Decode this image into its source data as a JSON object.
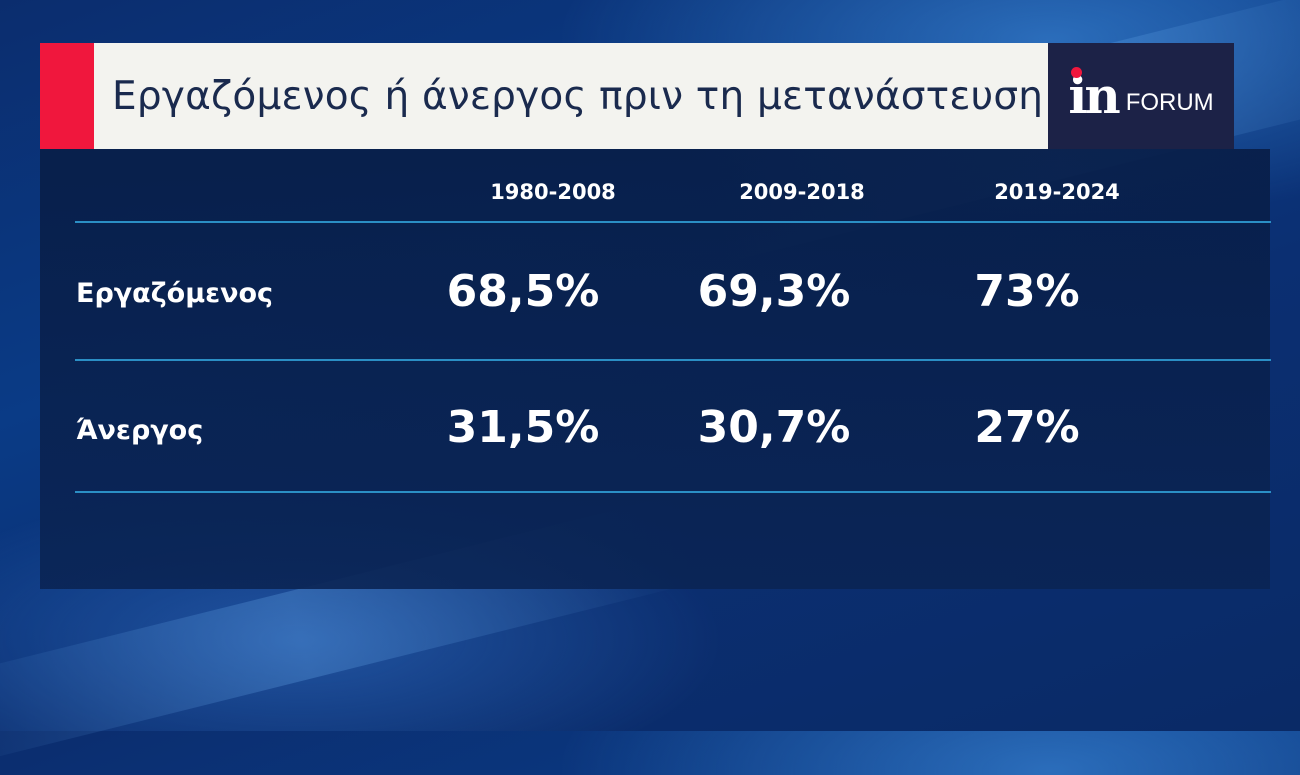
{
  "header": {
    "title": "Εργαζόμενος ή άνεργος πριν τη μετανάστευση",
    "logo_in": "in",
    "logo_forum": "FORUM"
  },
  "colors": {
    "accent_red": "#f0173d",
    "logo_bg": "#1c2247",
    "divider": "#2b8fc5"
  },
  "chart_data": {
    "type": "table",
    "title": "Εργαζόμενος ή άνεργος πριν τη μετανάστευση",
    "columns": [
      "1980-2008",
      "2009-2018",
      "2019-2024"
    ],
    "rows": [
      {
        "label": "Εργαζόμενος",
        "values": [
          "68,5%",
          "69,3%",
          "73%"
        ]
      },
      {
        "label": "Άνεργος",
        "values": [
          "31,5%",
          "30,7%",
          "27%"
        ]
      }
    ]
  }
}
